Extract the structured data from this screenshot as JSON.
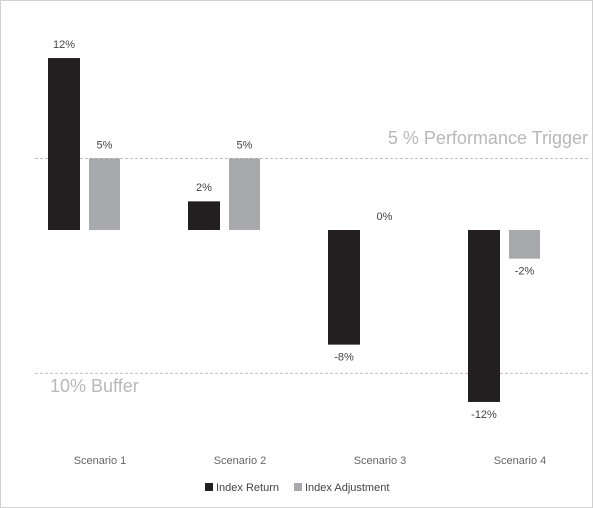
{
  "chart_data": {
    "type": "bar",
    "categories": [
      "Scenario 1",
      "Scenario 2",
      "Scenario 3",
      "Scenario 4"
    ],
    "series": [
      {
        "name": "Index Return",
        "color": "#231f20",
        "values": [
          12,
          2,
          -8,
          -12
        ],
        "value_labels": [
          "12%",
          "2%",
          "-8%",
          "-12%"
        ]
      },
      {
        "name": "Index Adjustment",
        "color": "#a7a9ac",
        "values": [
          5,
          5,
          0,
          -2
        ],
        "value_labels": [
          "5%",
          "5%",
          "0%",
          "-2%"
        ]
      }
    ],
    "ylim": [
      -14,
      14
    ],
    "reference_lines": [
      {
        "value": 5,
        "label": "5 % Performance Trigger"
      },
      {
        "value": -10,
        "label": "10% Buffer"
      }
    ],
    "legend": "bottom"
  }
}
